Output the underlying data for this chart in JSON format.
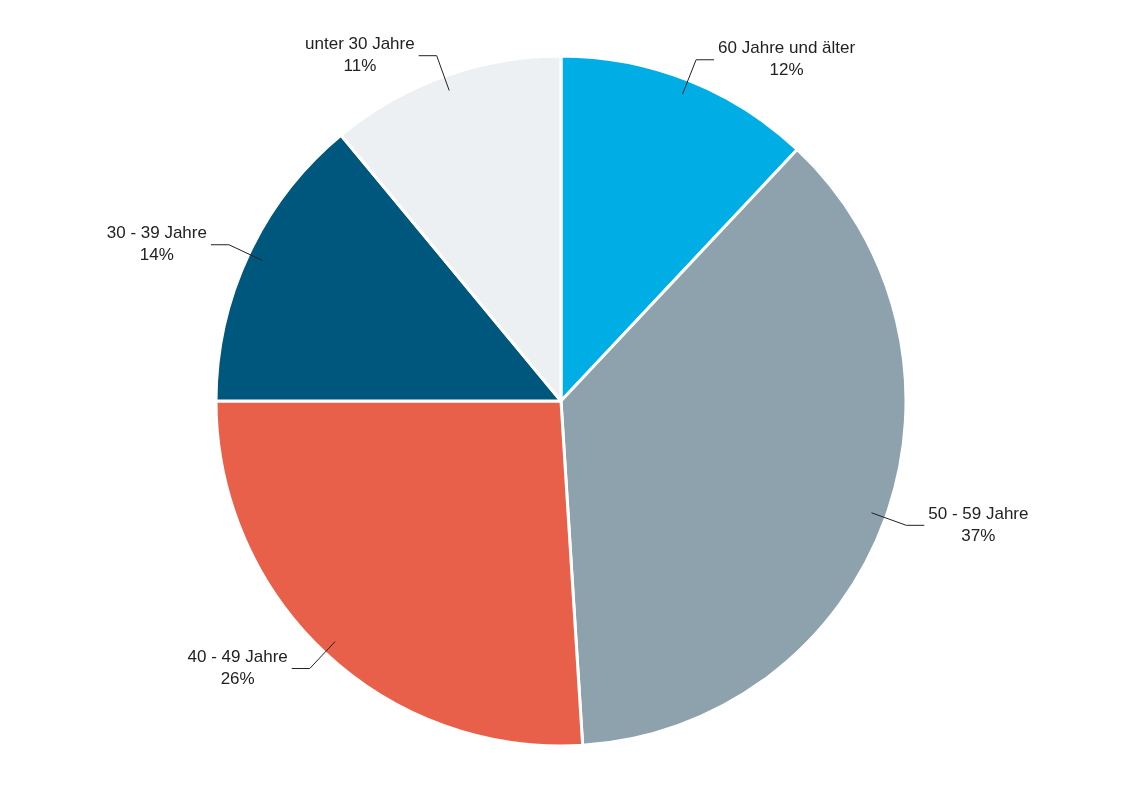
{
  "chart_data": {
    "type": "pie",
    "categories": [
      "60 Jahre und älter",
      "50 - 59 Jahre",
      "40 - 49 Jahre",
      "30 - 39 Jahre",
      "unter 30 Jahre"
    ],
    "values": [
      12,
      37,
      26,
      14,
      11
    ],
    "value_labels": [
      "12%",
      "37%",
      "26%",
      "14%",
      "11%"
    ],
    "colors": [
      "#00aee6",
      "#8ea2ae",
      "#e8604a",
      "#00577d",
      "#edf0f3"
    ],
    "legend": false
  }
}
